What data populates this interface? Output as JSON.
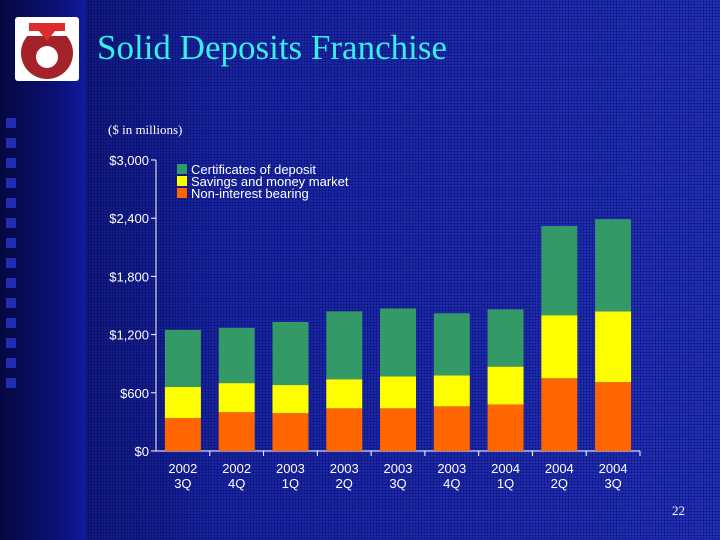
{
  "slide": {
    "title": "Solid Deposits Franchise",
    "subtitle": "($ in millions)",
    "page_number": "22"
  },
  "colors": {
    "non_interest": "#ff6600",
    "savings": "#ffff00",
    "certificates": "#339966"
  },
  "chart_data": {
    "type": "bar",
    "stacked": true,
    "categories": [
      [
        "2002",
        "3Q"
      ],
      [
        "2002",
        "4Q"
      ],
      [
        "2003",
        "1Q"
      ],
      [
        "2003",
        "2Q"
      ],
      [
        "2003",
        "3Q"
      ],
      [
        "2003",
        "4Q"
      ],
      [
        "2004",
        "1Q"
      ],
      [
        "2004",
        "2Q"
      ],
      [
        "2004",
        "3Q"
      ]
    ],
    "series": [
      {
        "name": "Non-interest bearing",
        "values": [
          340,
          400,
          390,
          440,
          440,
          460,
          480,
          750,
          710
        ]
      },
      {
        "name": "Savings and money market",
        "values": [
          320,
          300,
          290,
          300,
          330,
          320,
          390,
          650,
          730
        ]
      },
      {
        "name": "Certificates of deposit",
        "values": [
          590,
          570,
          650,
          700,
          700,
          640,
          590,
          920,
          950
        ]
      }
    ],
    "yticks": [
      "$0",
      "$600",
      "$1,200",
      "$1,800",
      "$2,400",
      "$3,000"
    ],
    "ylim": [
      0,
      3000
    ],
    "legend_position": "top-left",
    "grid": false
  }
}
